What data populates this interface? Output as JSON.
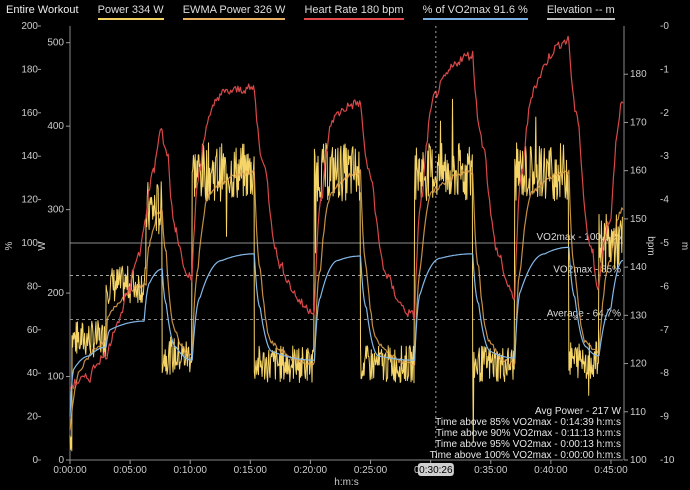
{
  "legend": {
    "title": "Entire Workout",
    "items": [
      {
        "label": "Power  334 W",
        "color": "#f0d060"
      },
      {
        "label": "EWMA Power  326 W",
        "color": "#e8b060"
      },
      {
        "label": "Heart Rate  180 bpm",
        "color": "#e04a4a"
      },
      {
        "label": "% of VO2max  91.6 %",
        "color": "#7ab0e0"
      },
      {
        "label": "Elevation  -- m",
        "color": "#bbbbbb"
      }
    ]
  },
  "cursor_label": "0:30:26",
  "reference_lines": [
    {
      "label": "VO2max - 100.0 %",
      "pct": 100
    },
    {
      "label": "VO2max - 85%",
      "pct": 85
    },
    {
      "label": "Average - 64.7%",
      "pct": 64.7
    }
  ],
  "stats": [
    "Avg Power - 217 W",
    "Time above 85% VO2max - 0:14:39 h:m:s",
    "Time above 90% VO2max - 0:11:13 h:m:s",
    "Time above 95% VO2max - 0:00:13 h:m:s",
    "Time above 100% VO2max - 0:00:00 h:m:s"
  ],
  "chart_data": {
    "type": "line",
    "xlabel": "h:m:s",
    "x_range_seconds": [
      0,
      2760
    ],
    "x_ticks": [
      "0:00:00",
      "0:05:00",
      "0:10:00",
      "0:15:00",
      "0:20:00",
      "0:25:00",
      "0:30:00",
      "0:35:00",
      "0:40:00",
      "0:45:00"
    ],
    "cursor_x": "0:30:26",
    "axes": {
      "pct": {
        "label": "%",
        "range": [
          0,
          200
        ],
        "ticks": [
          "0",
          "20",
          "40",
          "60",
          "80",
          "100",
          "120",
          "140",
          "160",
          "180",
          "200"
        ]
      },
      "power": {
        "label": "W",
        "range": [
          0,
          520
        ],
        "ticks": [
          "0",
          "100",
          "200",
          "300",
          "400",
          "500"
        ]
      },
      "hr": {
        "label": "bpm",
        "range": [
          100,
          190
        ],
        "ticks": [
          "100",
          "110",
          "120",
          "130",
          "140",
          "150",
          "160",
          "170",
          "180"
        ]
      },
      "elev": {
        "label": "m",
        "range": [
          -10,
          0
        ],
        "ticks": [
          "-10",
          "-9",
          "-8",
          "-7",
          "-6",
          "-5",
          "-4",
          "-3",
          "-2",
          "-1",
          "-0"
        ]
      }
    },
    "series": [
      {
        "name": "Power",
        "axis": "power",
        "color": "#f5d468",
        "segments": [
          {
            "t0": 0,
            "t1": 10,
            "v": 30
          },
          {
            "t0": 10,
            "t1": 180,
            "v": 145
          },
          {
            "t0": 180,
            "t1": 380,
            "v": 210
          },
          {
            "t0": 380,
            "t1": 460,
            "v": 300
          },
          {
            "t0": 460,
            "t1": 610,
            "v": 125
          },
          {
            "t0": 610,
            "t1": 920,
            "v": 345
          },
          {
            "t0": 920,
            "t1": 1220,
            "v": 115
          },
          {
            "t0": 1220,
            "t1": 1450,
            "v": 345
          },
          {
            "t0": 1450,
            "t1": 1720,
            "v": 115
          },
          {
            "t0": 1720,
            "t1": 2010,
            "v": 345
          },
          {
            "t0": 2010,
            "t1": 2220,
            "v": 115
          },
          {
            "t0": 2220,
            "t1": 2490,
            "v": 345
          },
          {
            "t0": 2490,
            "t1": 2640,
            "v": 120
          },
          {
            "t0": 2640,
            "t1": 2760,
            "v": 260
          }
        ]
      },
      {
        "name": "EWMA Power",
        "axis": "power",
        "color": "#e8a850",
        "points": [
          [
            0,
            35
          ],
          [
            60,
            110
          ],
          [
            180,
            140
          ],
          [
            190,
            170
          ],
          [
            380,
            210
          ],
          [
            400,
            260
          ],
          [
            460,
            300
          ],
          [
            480,
            250
          ],
          [
            520,
            160
          ],
          [
            610,
            125
          ],
          [
            640,
            230
          ],
          [
            700,
            320
          ],
          [
            920,
            345
          ],
          [
            950,
            230
          ],
          [
            1010,
            140
          ],
          [
            1220,
            115
          ],
          [
            1250,
            230
          ],
          [
            1310,
            320
          ],
          [
            1450,
            345
          ],
          [
            1480,
            230
          ],
          [
            1540,
            140
          ],
          [
            1720,
            115
          ],
          [
            1750,
            230
          ],
          [
            1810,
            320
          ],
          [
            2010,
            345
          ],
          [
            2040,
            230
          ],
          [
            2100,
            140
          ],
          [
            2220,
            115
          ],
          [
            2250,
            230
          ],
          [
            2310,
            320
          ],
          [
            2490,
            345
          ],
          [
            2520,
            230
          ],
          [
            2580,
            140
          ],
          [
            2640,
            130
          ],
          [
            2700,
            240
          ],
          [
            2760,
            300
          ]
        ]
      },
      {
        "name": "Heart Rate",
        "axis": "hr",
        "color": "#d94848",
        "points": [
          [
            0,
            115
          ],
          [
            100,
            117
          ],
          [
            160,
            121
          ],
          [
            190,
            122
          ],
          [
            250,
            129
          ],
          [
            300,
            135
          ],
          [
            350,
            143
          ],
          [
            380,
            150
          ],
          [
            420,
            160
          ],
          [
            460,
            168
          ],
          [
            490,
            163
          ],
          [
            530,
            148
          ],
          [
            610,
            138
          ],
          [
            650,
            160
          ],
          [
            700,
            171
          ],
          [
            760,
            176
          ],
          [
            920,
            177
          ],
          [
            980,
            160
          ],
          [
            1060,
            140
          ],
          [
            1220,
            131
          ],
          [
            1260,
            155
          ],
          [
            1320,
            171
          ],
          [
            1450,
            174
          ],
          [
            1510,
            158
          ],
          [
            1590,
            138
          ],
          [
            1720,
            130
          ],
          [
            1760,
            155
          ],
          [
            1830,
            176
          ],
          [
            2010,
            184
          ],
          [
            2070,
            165
          ],
          [
            2150,
            142
          ],
          [
            2220,
            134
          ],
          [
            2260,
            160
          ],
          [
            2330,
            178
          ],
          [
            2490,
            187
          ],
          [
            2540,
            170
          ],
          [
            2610,
            143
          ],
          [
            2640,
            136
          ],
          [
            2700,
            150
          ],
          [
            2760,
            174
          ]
        ]
      },
      {
        "name": "% of VO2max",
        "axis": "pct",
        "color": "#84b8e8",
        "points": [
          [
            0,
            20
          ],
          [
            20,
            42
          ],
          [
            100,
            48
          ],
          [
            180,
            52
          ],
          [
            200,
            60
          ],
          [
            370,
            64
          ],
          [
            400,
            82
          ],
          [
            460,
            88
          ],
          [
            480,
            72
          ],
          [
            530,
            52
          ],
          [
            610,
            46
          ],
          [
            650,
            75
          ],
          [
            760,
            92
          ],
          [
            920,
            95
          ],
          [
            950,
            70
          ],
          [
            1010,
            50
          ],
          [
            1220,
            46
          ],
          [
            1250,
            75
          ],
          [
            1340,
            92
          ],
          [
            1450,
            94
          ],
          [
            1480,
            70
          ],
          [
            1540,
            48
          ],
          [
            1720,
            46
          ],
          [
            1750,
            77
          ],
          [
            1850,
            93
          ],
          [
            2010,
            95
          ],
          [
            2040,
            72
          ],
          [
            2100,
            50
          ],
          [
            2220,
            47
          ],
          [
            2250,
            78
          ],
          [
            2370,
            95
          ],
          [
            2490,
            98
          ],
          [
            2520,
            75
          ],
          [
            2580,
            52
          ],
          [
            2640,
            48
          ],
          [
            2700,
            70
          ],
          [
            2760,
            92
          ]
        ]
      }
    ]
  }
}
